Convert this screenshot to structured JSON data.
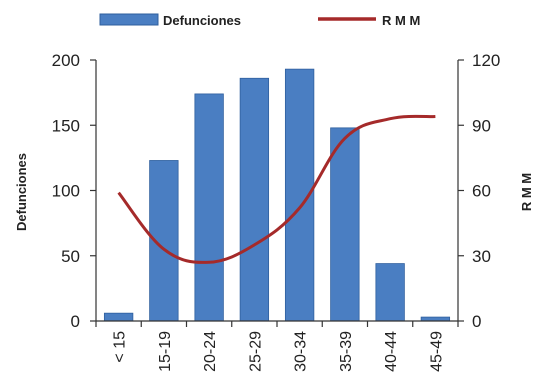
{
  "chart_data": {
    "type": "bar",
    "categories": [
      "< 15",
      "15-19",
      "20-24",
      "25-29",
      "30-34",
      "35-39",
      "40-44",
      "45-49"
    ],
    "series": [
      {
        "name": "Defunciones",
        "type": "bar",
        "axis": "left",
        "values": [
          6,
          123,
          174,
          186,
          193,
          148,
          44,
          3
        ]
      },
      {
        "name": "R M M",
        "type": "line",
        "axis": "right",
        "values": [
          59,
          33,
          27,
          35,
          52,
          84,
          93,
          94
        ]
      }
    ],
    "ylabel": "Defunciones",
    "y2label": "R M M",
    "ylim": [
      0,
      200
    ],
    "y2lim": [
      0,
      120
    ],
    "yticks": [
      "0",
      "50",
      "100",
      "150",
      "200"
    ],
    "y2ticks": [
      "0",
      "30",
      "60",
      "90",
      "120"
    ],
    "legend_position": "top",
    "grid": false,
    "colors": {
      "bar": "#4a7ec2",
      "bar_edge": "#2f5f9e",
      "line": "#a52a2a"
    }
  }
}
